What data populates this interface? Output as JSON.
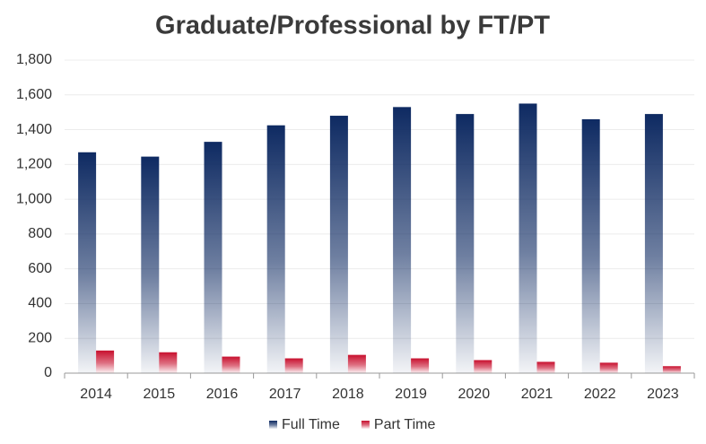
{
  "chart_data": {
    "type": "bar",
    "title": "Graduate/Professional by FT/PT",
    "categories": [
      "2014",
      "2015",
      "2016",
      "2017",
      "2018",
      "2019",
      "2020",
      "2021",
      "2022",
      "2023"
    ],
    "series": [
      {
        "name": "Full Time",
        "color": "#0e2a62",
        "values": [
          1270,
          1245,
          1330,
          1425,
          1480,
          1530,
          1490,
          1550,
          1460,
          1490
        ]
      },
      {
        "name": "Part Time",
        "color": "#c8102e",
        "values": [
          130,
          120,
          95,
          85,
          105,
          85,
          75,
          65,
          60,
          40
        ]
      }
    ],
    "ylim": [
      0,
      1800
    ],
    "yticks": [
      0,
      200,
      400,
      600,
      800,
      {
        "value": 1000,
        "label": "1,000"
      },
      {
        "value": 1200,
        "label": "1,200"
      },
      {
        "value": 1400,
        "label": "1,400"
      },
      {
        "value": 1600,
        "label": "1,600"
      },
      {
        "value": 1800,
        "label": "1,800"
      }
    ],
    "grid": true,
    "legend": "bottom"
  }
}
